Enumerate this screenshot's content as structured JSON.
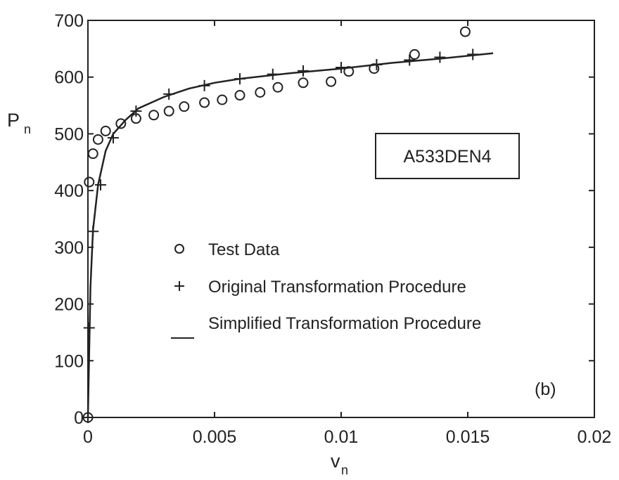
{
  "chart_data": {
    "type": "scatter",
    "xlabel": "v",
    "xlabel_sub": "n",
    "ylabel": "P",
    "ylabel_sub": "n",
    "xlim": [
      0,
      0.02
    ],
    "ylim": [
      0,
      700
    ],
    "xticks": [
      0,
      0.005,
      0.01,
      0.015,
      0.02
    ],
    "xtick_labels": [
      "0",
      "0.005",
      "0.01",
      "0.015",
      "0.02"
    ],
    "yticks": [
      0,
      100,
      200,
      300,
      400,
      500,
      600,
      700
    ],
    "ytick_labels": [
      "0",
      "100",
      "200",
      "300",
      "400",
      "500",
      "600",
      "700"
    ],
    "grid": false,
    "annotation_box": "A533DEN4",
    "panel_label": "(b)",
    "legend_position": "center",
    "series": [
      {
        "name": "Test Data",
        "marker": "circle",
        "points": [
          [
            0,
            0
          ],
          [
            5e-05,
            415
          ],
          [
            0.0002,
            465
          ],
          [
            0.0004,
            490
          ],
          [
            0.0007,
            505
          ],
          [
            0.0013,
            518
          ],
          [
            0.0019,
            527
          ],
          [
            0.0026,
            533
          ],
          [
            0.0032,
            540
          ],
          [
            0.0038,
            548
          ],
          [
            0.0046,
            555
          ],
          [
            0.0053,
            560
          ],
          [
            0.006,
            568
          ],
          [
            0.0068,
            573
          ],
          [
            0.0075,
            582
          ],
          [
            0.0085,
            590
          ],
          [
            0.0096,
            592
          ],
          [
            0.0103,
            610
          ],
          [
            0.0113,
            615
          ],
          [
            0.0129,
            640
          ],
          [
            0.0149,
            680
          ]
        ]
      },
      {
        "name": "Original Transformation Procedure",
        "marker": "plus",
        "points": [
          [
            0,
            0
          ],
          [
            5e-05,
            158
          ],
          [
            0.0002,
            328
          ],
          [
            0.0005,
            410
          ],
          [
            0.001,
            493
          ],
          [
            0.0019,
            540
          ],
          [
            0.0032,
            570
          ],
          [
            0.0046,
            585
          ],
          [
            0.006,
            597
          ],
          [
            0.0073,
            605
          ],
          [
            0.0085,
            611
          ],
          [
            0.01,
            617
          ],
          [
            0.0114,
            622
          ],
          [
            0.0127,
            630
          ],
          [
            0.0139,
            635
          ],
          [
            0.0152,
            640
          ]
        ]
      },
      {
        "name": "Simplified Transformation Procedure",
        "marker": "line",
        "points": [
          [
            0,
            0
          ],
          [
            0.0001,
            230
          ],
          [
            0.0002,
            330
          ],
          [
            0.0004,
            410
          ],
          [
            0.0007,
            470
          ],
          [
            0.001,
            500
          ],
          [
            0.0015,
            525
          ],
          [
            0.002,
            545
          ],
          [
            0.003,
            565
          ],
          [
            0.004,
            580
          ],
          [
            0.005,
            590
          ],
          [
            0.006,
            597
          ],
          [
            0.008,
            607
          ],
          [
            0.01,
            615
          ],
          [
            0.012,
            625
          ],
          [
            0.014,
            633
          ],
          [
            0.016,
            642
          ]
        ]
      }
    ]
  }
}
